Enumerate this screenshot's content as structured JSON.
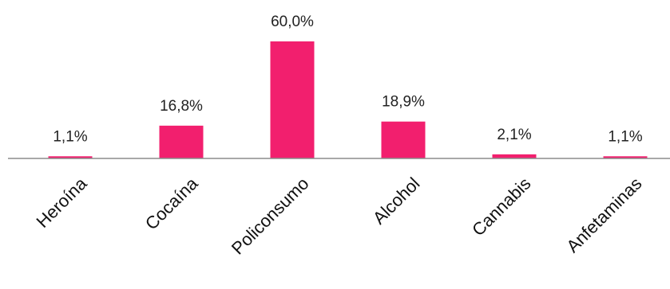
{
  "chart_data": {
    "type": "bar",
    "title": "",
    "xlabel": "",
    "ylabel": "",
    "categories": [
      "Heroína",
      "Cocaína",
      "Policonsumo",
      "Alcohol",
      "Cannabis",
      "Anfetaminas"
    ],
    "values": [
      1.1,
      16.8,
      60.0,
      18.9,
      2.1,
      1.1
    ],
    "value_labels": [
      "1,1%",
      "16,8%",
      "60,0%",
      "18,9%",
      "2,1%",
      "1,1%"
    ],
    "ylim": [
      0,
      60
    ],
    "grid": false,
    "bar_color": "#f21f6e",
    "axis_color": "#8c8c8c"
  }
}
